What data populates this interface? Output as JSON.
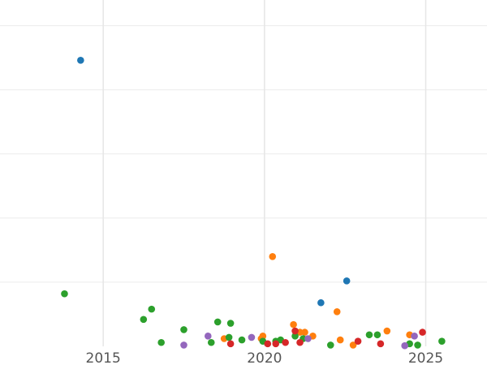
{
  "chart_data": {
    "type": "scatter",
    "title": "",
    "xlabel": "",
    "ylabel": "",
    "xlim": [
      2011.8,
      2026.9
    ],
    "ylim": [
      0,
      27
    ],
    "grid": true,
    "legend": "none",
    "x_ticks": [
      {
        "value": 2015,
        "label": "2015"
      },
      {
        "value": 2020,
        "label": "2020"
      },
      {
        "value": 2025,
        "label": "2025"
      }
    ],
    "y_gridlines": [
      5,
      10,
      15,
      20,
      25
    ],
    "series": [
      {
        "color": "#1f77b4",
        "points": [
          {
            "x": 2014.3,
            "y": 22.3
          },
          {
            "x": 2021.75,
            "y": 3.4
          },
          {
            "x": 2022.55,
            "y": 5.1
          }
        ]
      },
      {
        "color": "#ff7f0e",
        "points": [
          {
            "x": 2018.75,
            "y": 0.6
          },
          {
            "x": 2019.9,
            "y": 0.6
          },
          {
            "x": 2019.95,
            "y": 0.8
          },
          {
            "x": 2020.25,
            "y": 7.0
          },
          {
            "x": 2020.9,
            "y": 1.7
          },
          {
            "x": 2021.1,
            "y": 1.1
          },
          {
            "x": 2021.25,
            "y": 1.1
          },
          {
            "x": 2021.5,
            "y": 0.8
          },
          {
            "x": 2022.25,
            "y": 2.7
          },
          {
            "x": 2022.35,
            "y": 0.5
          },
          {
            "x": 2022.75,
            "y": 0.1
          },
          {
            "x": 2023.8,
            "y": 1.2
          },
          {
            "x": 2024.5,
            "y": 0.9
          }
        ]
      },
      {
        "color": "#2ca02c",
        "points": [
          {
            "x": 2013.8,
            "y": 4.1
          },
          {
            "x": 2016.25,
            "y": 2.1
          },
          {
            "x": 2016.5,
            "y": 2.9
          },
          {
            "x": 2016.8,
            "y": 0.3
          },
          {
            "x": 2017.5,
            "y": 1.3
          },
          {
            "x": 2018.35,
            "y": 0.3
          },
          {
            "x": 2018.55,
            "y": 1.9
          },
          {
            "x": 2018.9,
            "y": 0.7
          },
          {
            "x": 2018.95,
            "y": 1.8
          },
          {
            "x": 2019.3,
            "y": 0.5
          },
          {
            "x": 2019.95,
            "y": 0.4
          },
          {
            "x": 2020.35,
            "y": 0.4
          },
          {
            "x": 2020.5,
            "y": 0.5
          },
          {
            "x": 2020.95,
            "y": 0.8
          },
          {
            "x": 2021.2,
            "y": 0.6
          },
          {
            "x": 2022.05,
            "y": 0.1
          },
          {
            "x": 2023.25,
            "y": 0.9
          },
          {
            "x": 2023.5,
            "y": 0.9
          },
          {
            "x": 2024.5,
            "y": 0.2
          },
          {
            "x": 2024.75,
            "y": 0.1
          },
          {
            "x": 2025.5,
            "y": 0.4
          }
        ]
      },
      {
        "color": "#d62728",
        "points": [
          {
            "x": 2018.95,
            "y": 0.2
          },
          {
            "x": 2020.1,
            "y": 0.2
          },
          {
            "x": 2020.35,
            "y": 0.2
          },
          {
            "x": 2020.65,
            "y": 0.3
          },
          {
            "x": 2020.95,
            "y": 1.2
          },
          {
            "x": 2021.1,
            "y": 0.3
          },
          {
            "x": 2022.9,
            "y": 0.4
          },
          {
            "x": 2023.6,
            "y": 0.2
          },
          {
            "x": 2024.9,
            "y": 1.1
          }
        ]
      },
      {
        "color": "#9467bd",
        "points": [
          {
            "x": 2017.5,
            "y": 0.1
          },
          {
            "x": 2018.25,
            "y": 0.8
          },
          {
            "x": 2019.6,
            "y": 0.7
          },
          {
            "x": 2021.35,
            "y": 0.6
          },
          {
            "x": 2024.35,
            "y": 0.05
          },
          {
            "x": 2024.65,
            "y": 0.8
          }
        ]
      }
    ]
  }
}
